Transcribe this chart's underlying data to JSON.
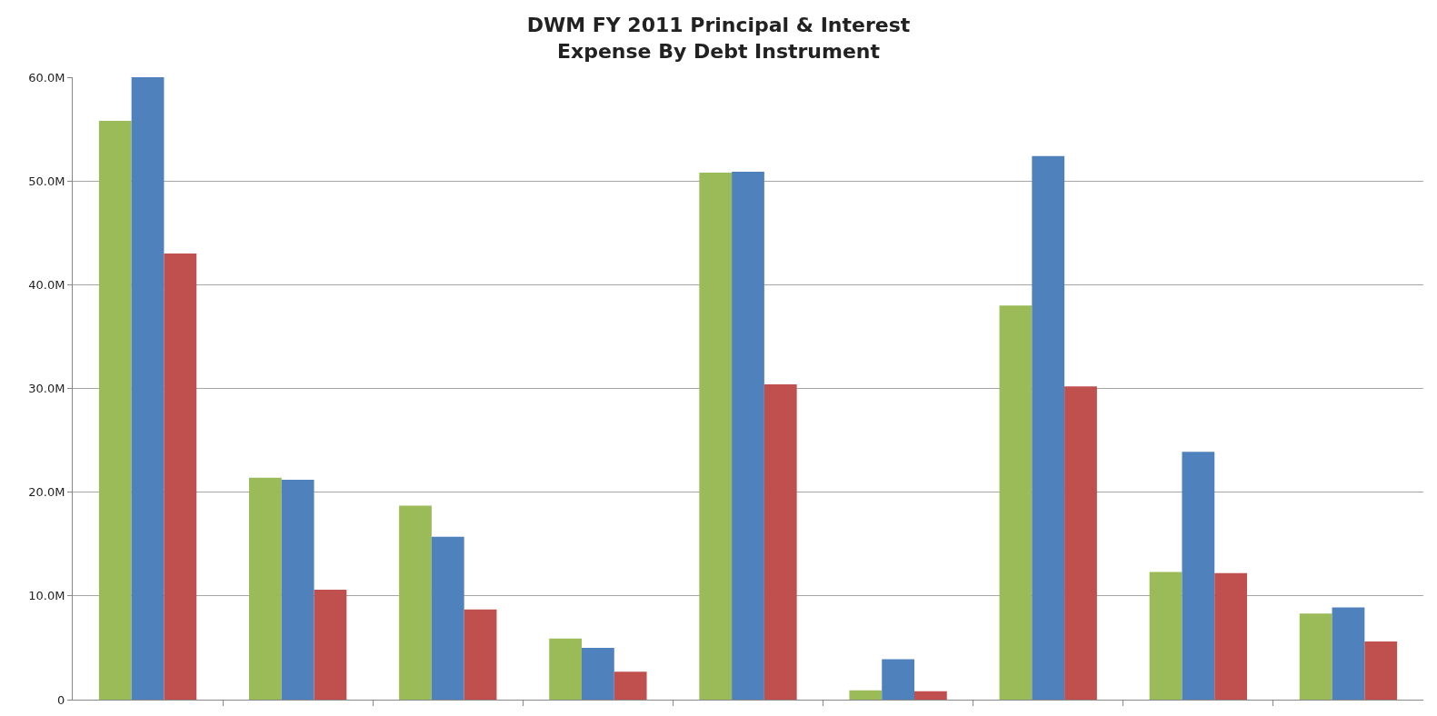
{
  "chart_data": {
    "type": "bar",
    "title": "DWM FY 2011 Principal & Interest\nExpense By Debt Instrument",
    "categories": [
      null,
      null,
      null,
      null,
      null,
      null,
      null,
      null,
      null
    ],
    "series": [
      {
        "color": "#9bbb59",
        "values": [
          55.8,
          21.4,
          18.7,
          5.9,
          50.8,
          0.9,
          38.0,
          12.3,
          8.3
        ]
      },
      {
        "color": "#4f81bd",
        "values": [
          60.0,
          21.2,
          15.7,
          5.0,
          50.9,
          3.9,
          52.4,
          23.9,
          8.9
        ]
      },
      {
        "color": "#c0504d",
        "values": [
          43.0,
          10.6,
          8.7,
          2.7,
          30.4,
          0.8,
          30.2,
          12.2,
          5.6
        ]
      }
    ],
    "ylim": [
      0,
      60
    ],
    "yticks": [
      {
        "value": 0,
        "label": "0"
      },
      {
        "value": 10,
        "label": "10.0M"
      },
      {
        "value": 20,
        "label": "20.0M"
      },
      {
        "value": 30,
        "label": "30.0M"
      },
      {
        "value": 40,
        "label": "40.0M"
      },
      {
        "value": 50,
        "label": "50.0M"
      },
      {
        "value": 60,
        "label": "60.0M"
      }
    ],
    "grid": "y",
    "legend": false
  }
}
